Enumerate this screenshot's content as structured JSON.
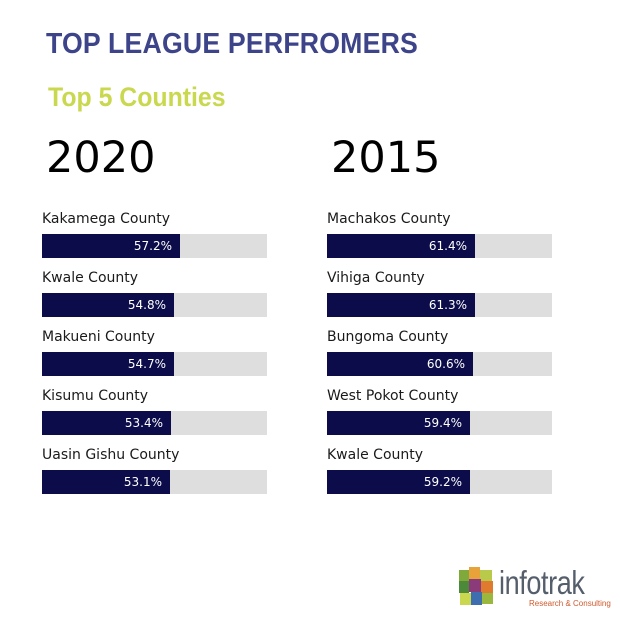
{
  "header": {
    "title": "TOP LEAGUE PERFROMERS",
    "subtitle": "Top 5 Counties"
  },
  "chart_data": [
    {
      "type": "bar",
      "orientation": "horizontal",
      "title": "2020",
      "categories": [
        "Kakamega County",
        "Kwale County",
        "Makueni County",
        "Kisumu County",
        "Uasin Gishu County"
      ],
      "values": [
        57.2,
        54.8,
        54.7,
        53.4,
        53.1
      ],
      "value_labels": [
        "57.2%",
        "54.8%",
        "54.7%",
        "53.4%",
        "53.1%"
      ],
      "xlim": [
        0,
        100
      ],
      "bar_color": "#0c0c4a",
      "track_color": "#dedede",
      "grid": false
    },
    {
      "type": "bar",
      "orientation": "horizontal",
      "title": "2015",
      "categories": [
        "Machakos County",
        "Vihiga County",
        "Bungoma County",
        "West Pokot County",
        "Kwale County"
      ],
      "values": [
        61.4,
        61.3,
        60.6,
        59.4,
        59.2
      ],
      "value_labels": [
        "61.4%",
        "61.3%",
        "60.6%",
        "59.4%",
        "59.2%"
      ],
      "xlim": [
        0,
        100
      ],
      "bar_color": "#0c0c4a",
      "track_color": "#dedede",
      "grid": false
    }
  ],
  "logo": {
    "name": "infotrak",
    "tagline": "Research & Consulting",
    "icon": "infotrak-cube-logo-icon"
  },
  "colors": {
    "title": "#3d4489",
    "subtitle": "#c9d84e",
    "bar": "#0c0c4a",
    "track": "#dedede"
  }
}
